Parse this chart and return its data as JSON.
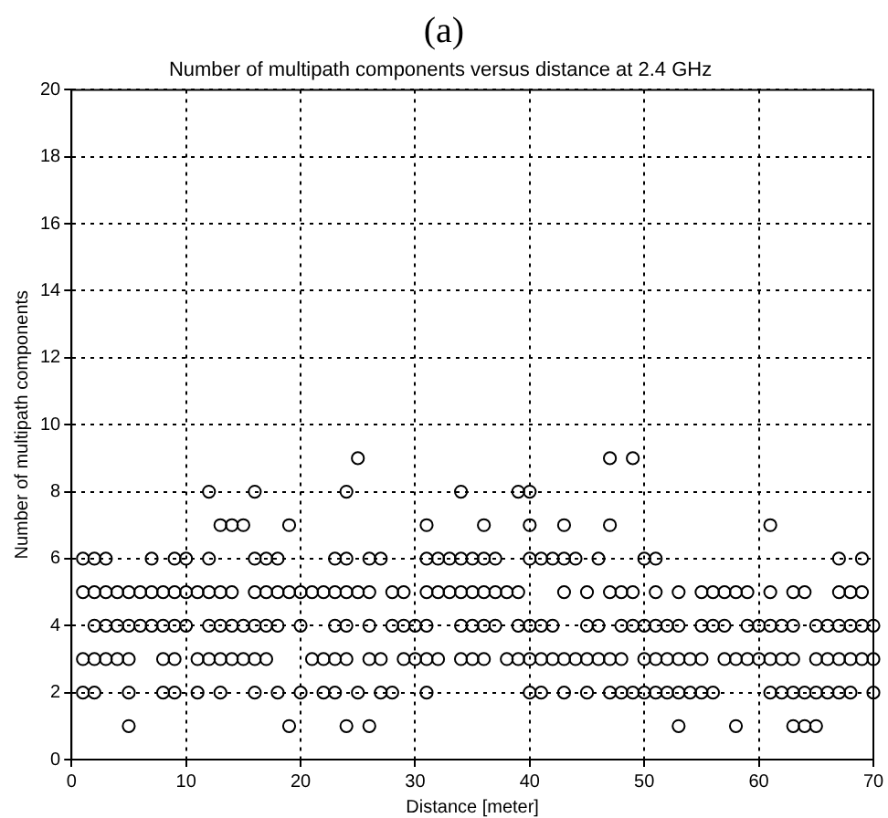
{
  "chart_data": {
    "type": "scatter",
    "title": "Number of multipath components versus distance at 2.4 GHz",
    "xlabel": "Distance [meter]",
    "ylabel": "Number of multipath components",
    "annotations": [
      "(a)"
    ],
    "series": [
      {
        "color": "#000000",
        "x": [
          5,
          19,
          24,
          26,
          53,
          58,
          63,
          64,
          65
        ],
        "values": [
          1,
          1,
          1,
          1,
          1,
          1,
          1,
          1,
          1
        ]
      },
      {
        "color": "#000000",
        "x": [
          1,
          2,
          5,
          8,
          9,
          11,
          13,
          16,
          18,
          20,
          22,
          23,
          25,
          27,
          28,
          31,
          40,
          41,
          43,
          45,
          47,
          48,
          49,
          50,
          51,
          52,
          53,
          54,
          55,
          56,
          61,
          62,
          63,
          64,
          65,
          66,
          67,
          68,
          70
        ],
        "values": [
          2,
          2,
          2,
          2,
          2,
          2,
          2,
          2,
          2,
          2,
          2,
          2,
          2,
          2,
          2,
          2,
          2,
          2,
          2,
          2,
          2,
          2,
          2,
          2,
          2,
          2,
          2,
          2,
          2,
          2,
          2,
          2,
          2,
          2,
          2,
          2,
          2,
          2,
          2
        ]
      },
      {
        "color": "#000000",
        "x": [
          1,
          2,
          3,
          4,
          5,
          8,
          9,
          11,
          12,
          13,
          14,
          15,
          16,
          17,
          21,
          22,
          23,
          24,
          26,
          27,
          29,
          30,
          31,
          32,
          34,
          35,
          36,
          38,
          39,
          40,
          41,
          42,
          43,
          44,
          45,
          46,
          47,
          48,
          50,
          51,
          52,
          53,
          54,
          55,
          57,
          58,
          59,
          60,
          61,
          62,
          63,
          65,
          66,
          67,
          68,
          69,
          70
        ],
        "values": [
          3,
          3,
          3,
          3,
          3,
          3,
          3,
          3,
          3,
          3,
          3,
          3,
          3,
          3,
          3,
          3,
          3,
          3,
          3,
          3,
          3,
          3,
          3,
          3,
          3,
          3,
          3,
          3,
          3,
          3,
          3,
          3,
          3,
          3,
          3,
          3,
          3,
          3,
          3,
          3,
          3,
          3,
          3,
          3,
          3,
          3,
          3,
          3,
          3,
          3,
          3,
          3,
          3,
          3,
          3,
          3,
          3
        ]
      },
      {
        "color": "#000000",
        "x": [
          2,
          3,
          4,
          5,
          6,
          7,
          8,
          9,
          10,
          12,
          13,
          14,
          15,
          16,
          17,
          18,
          20,
          23,
          24,
          26,
          28,
          29,
          30,
          31,
          34,
          35,
          36,
          37,
          39,
          40,
          41,
          42,
          45,
          46,
          48,
          49,
          50,
          51,
          52,
          53,
          55,
          56,
          57,
          59,
          60,
          61,
          62,
          63,
          65,
          66,
          67,
          68,
          69,
          70
        ],
        "values": [
          4,
          4,
          4,
          4,
          4,
          4,
          4,
          4,
          4,
          4,
          4,
          4,
          4,
          4,
          4,
          4,
          4,
          4,
          4,
          4,
          4,
          4,
          4,
          4,
          4,
          4,
          4,
          4,
          4,
          4,
          4,
          4,
          4,
          4,
          4,
          4,
          4,
          4,
          4,
          4,
          4,
          4,
          4,
          4,
          4,
          4,
          4,
          4,
          4,
          4,
          4,
          4,
          4,
          4
        ]
      },
      {
        "color": "#000000",
        "x": [
          1,
          2,
          3,
          4,
          5,
          6,
          7,
          8,
          9,
          10,
          11,
          12,
          13,
          14,
          16,
          17,
          18,
          19,
          20,
          21,
          22,
          23,
          24,
          25,
          26,
          28,
          29,
          31,
          32,
          33,
          34,
          35,
          36,
          37,
          38,
          39,
          43,
          45,
          47,
          48,
          49,
          51,
          53,
          55,
          56,
          57,
          58,
          59,
          61,
          63,
          64,
          67,
          68,
          69
        ],
        "values": [
          5,
          5,
          5,
          5,
          5,
          5,
          5,
          5,
          5,
          5,
          5,
          5,
          5,
          5,
          5,
          5,
          5,
          5,
          5,
          5,
          5,
          5,
          5,
          5,
          5,
          5,
          5,
          5,
          5,
          5,
          5,
          5,
          5,
          5,
          5,
          5,
          5,
          5,
          5,
          5,
          5,
          5,
          5,
          5,
          5,
          5,
          5,
          5,
          5,
          5,
          5,
          5,
          5,
          5
        ]
      },
      {
        "color": "#000000",
        "x": [
          1,
          2,
          3,
          7,
          9,
          10,
          12,
          16,
          17,
          18,
          23,
          24,
          26,
          27,
          31,
          32,
          33,
          34,
          35,
          36,
          37,
          40,
          41,
          42,
          43,
          44,
          46,
          50,
          51,
          67,
          69
        ],
        "values": [
          6,
          6,
          6,
          6,
          6,
          6,
          6,
          6,
          6,
          6,
          6,
          6,
          6,
          6,
          6,
          6,
          6,
          6,
          6,
          6,
          6,
          6,
          6,
          6,
          6,
          6,
          6,
          6,
          6,
          6,
          6
        ]
      },
      {
        "color": "#000000",
        "x": [
          13,
          14,
          15,
          19,
          31,
          36,
          40,
          43,
          47,
          61
        ],
        "values": [
          7,
          7,
          7,
          7,
          7,
          7,
          7,
          7,
          7,
          7
        ]
      },
      {
        "color": "#000000",
        "x": [
          12,
          16,
          24,
          34,
          39,
          40
        ],
        "values": [
          8,
          8,
          8,
          8,
          8,
          8
        ]
      },
      {
        "color": "#000000",
        "x": [
          25,
          47,
          49
        ],
        "values": [
          9,
          9,
          9
        ]
      }
    ],
    "xlim": [
      0,
      70
    ],
    "xticks": [
      0,
      10,
      20,
      30,
      40,
      50,
      60,
      70
    ],
    "ylim": [
      0,
      20
    ],
    "yticks": [
      0,
      2,
      4,
      6,
      8,
      10,
      12,
      14,
      16,
      18,
      20
    ],
    "grid": true,
    "legend": false,
    "marker": "circle"
  }
}
